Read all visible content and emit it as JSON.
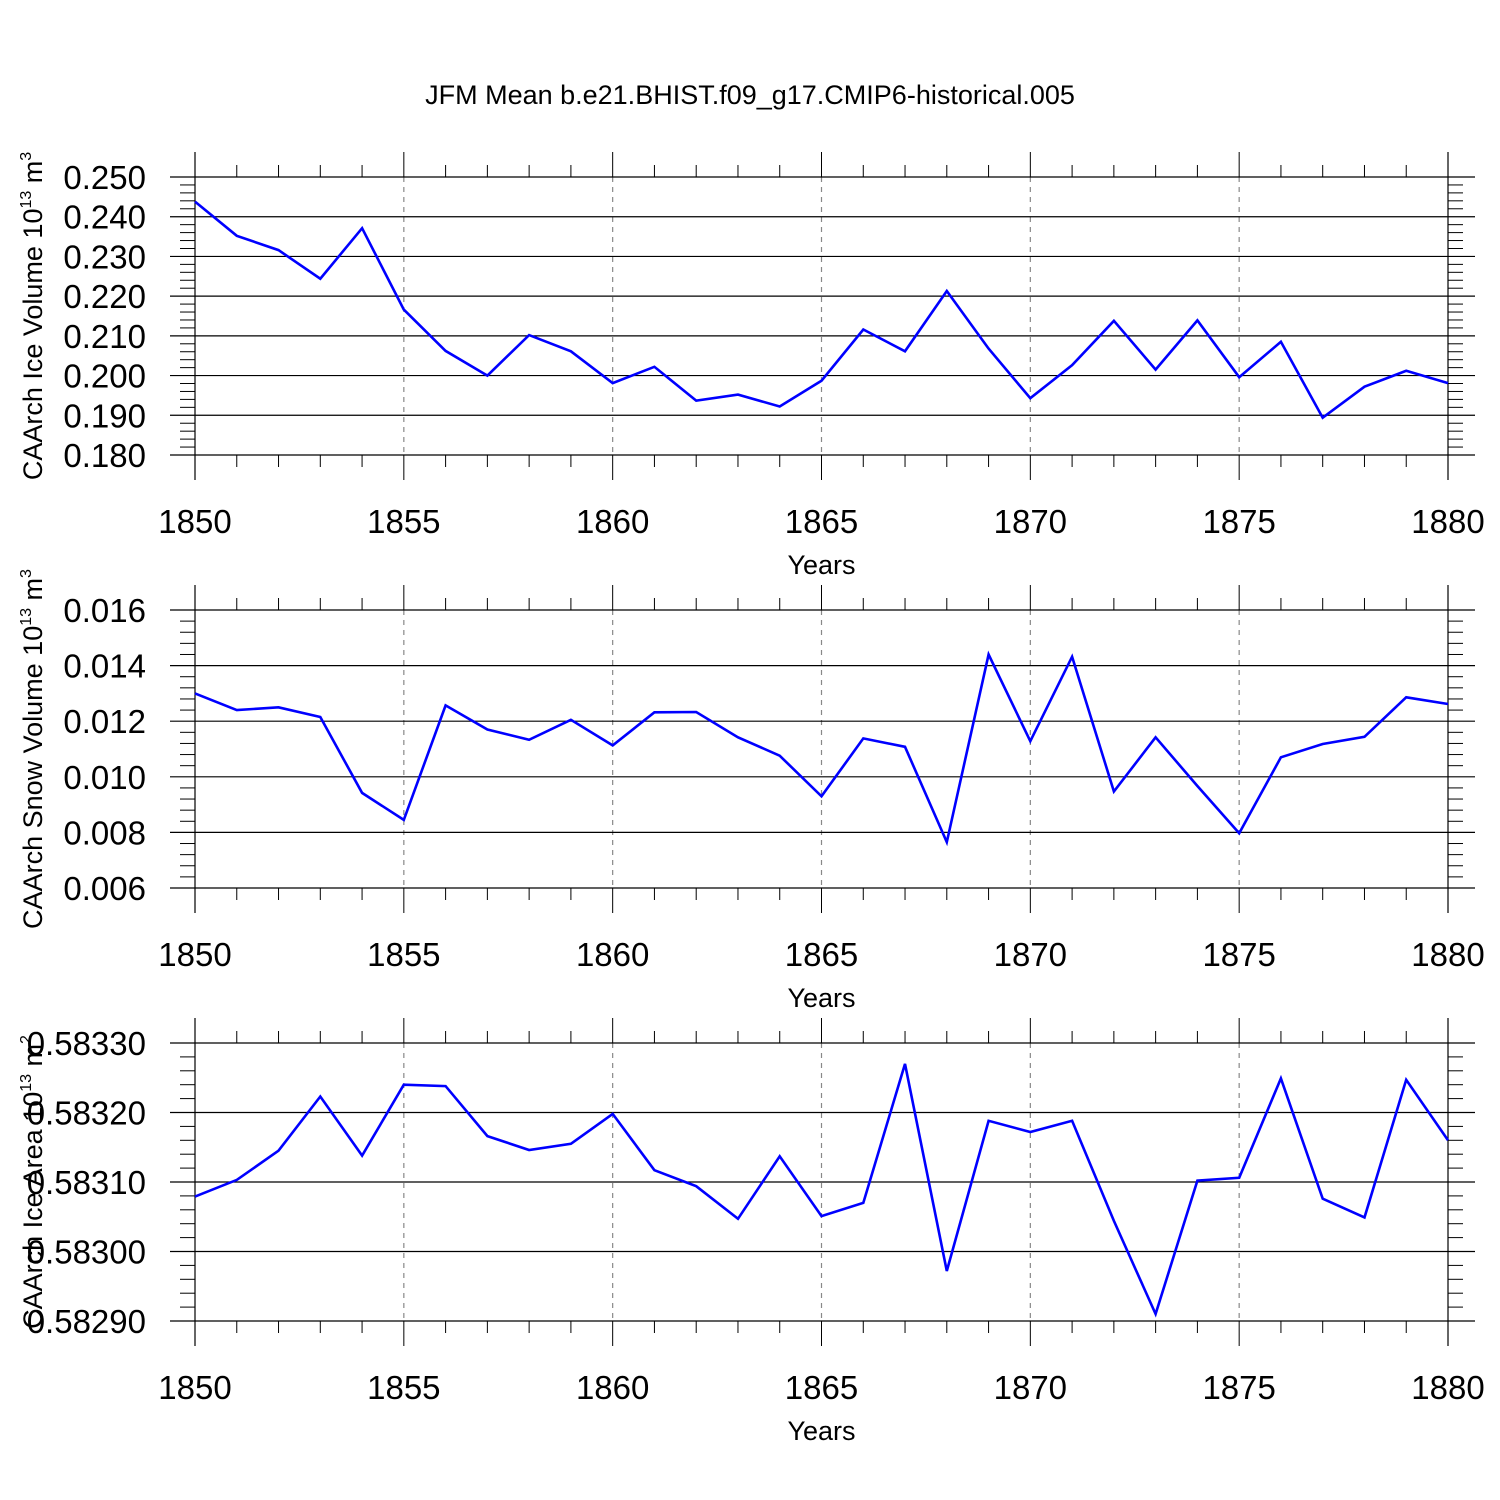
{
  "title": "JFM Mean b.e21.BHIST.f09_g17.CMIP6-historical.005",
  "colors": {
    "line": "#0000ff",
    "axis": "#000000",
    "grid": "#888888"
  },
  "chart_data": [
    {
      "type": "line",
      "ylabel": {
        "main": "CAArch Ice Volume 10",
        "exp": "13",
        "unit": " m",
        "unit_exp": "3"
      },
      "xlabel": "Years",
      "xlim": [
        1850,
        1880
      ],
      "ylim": [
        0.18,
        0.25
      ],
      "yticks": [
        0.18,
        0.19,
        0.2,
        0.21,
        0.22,
        0.23,
        0.24,
        0.25
      ],
      "ytick_labels": [
        "0.180",
        "0.190",
        "0.200",
        "0.210",
        "0.220",
        "0.230",
        "0.240",
        "0.250"
      ],
      "xticks": [
        1850,
        1855,
        1860,
        1865,
        1870,
        1875,
        1880
      ],
      "xtick_labels": [
        "1850",
        "1855",
        "1860",
        "1865",
        "1870",
        "1875",
        "1880"
      ],
      "grid": "vertical dashed at major x ticks",
      "x": [
        1850,
        1851,
        1852,
        1853,
        1854,
        1855,
        1856,
        1857,
        1858,
        1859,
        1860,
        1861,
        1862,
        1863,
        1864,
        1865,
        1866,
        1867,
        1868,
        1869,
        1870,
        1871,
        1872,
        1873,
        1874,
        1875,
        1876,
        1877,
        1878,
        1879,
        1880
      ],
      "values": [
        0.2438,
        0.2352,
        0.2316,
        0.2244,
        0.2371,
        0.2166,
        0.2062,
        0.2,
        0.2102,
        0.2061,
        0.1981,
        0.2022,
        0.1937,
        0.1952,
        0.1922,
        0.1987,
        0.2116,
        0.2061,
        0.2213,
        0.2068,
        0.1943,
        0.2026,
        0.2138,
        0.2015,
        0.2139,
        0.1996,
        0.2085,
        0.1894,
        0.1972,
        0.2012,
        0.1981
      ]
    },
    {
      "type": "line",
      "ylabel": {
        "main": "CAArch Snow Volume 10",
        "exp": "13",
        "unit": " m",
        "unit_exp": "3"
      },
      "xlabel": "Years",
      "xlim": [
        1850,
        1880
      ],
      "ylim": [
        0.006,
        0.016
      ],
      "yticks": [
        0.006,
        0.008,
        0.01,
        0.012,
        0.014,
        0.016
      ],
      "ytick_labels": [
        "0.006",
        "0.008",
        "0.010",
        "0.012",
        "0.014",
        "0.016"
      ],
      "xticks": [
        1850,
        1855,
        1860,
        1865,
        1870,
        1875,
        1880
      ],
      "xtick_labels": [
        "1850",
        "1855",
        "1860",
        "1865",
        "1870",
        "1875",
        "1880"
      ],
      "grid": "vertical dashed at major x ticks",
      "x": [
        1850,
        1851,
        1852,
        1853,
        1854,
        1855,
        1856,
        1857,
        1858,
        1859,
        1860,
        1861,
        1862,
        1863,
        1864,
        1865,
        1866,
        1867,
        1868,
        1869,
        1870,
        1871,
        1872,
        1873,
        1874,
        1875,
        1876,
        1877,
        1878,
        1879,
        1880
      ],
      "values": [
        0.013,
        0.0124,
        0.0125,
        0.01215,
        0.00942,
        0.00845,
        0.01257,
        0.0117,
        0.01133,
        0.01205,
        0.01113,
        0.01232,
        0.01233,
        0.01142,
        0.01076,
        0.0093,
        0.01138,
        0.01108,
        0.00765,
        0.0144,
        0.01128,
        0.01432,
        0.00947,
        0.01142,
        0.00967,
        0.00797,
        0.0107,
        0.01118,
        0.01144,
        0.01286,
        0.01262
      ]
    },
    {
      "type": "line",
      "ylabel": {
        "main": "CAArch Ice Area 10",
        "exp": "13",
        "unit": " m",
        "unit_exp": "2"
      },
      "xlabel": "Years",
      "xlim": [
        1850,
        1880
      ],
      "ylim": [
        0.5829,
        0.5833
      ],
      "yticks": [
        0.5829,
        0.583,
        0.5831,
        0.5832,
        0.5833
      ],
      "ytick_labels": [
        "0.58290",
        "0.58300",
        "0.58310",
        "0.58320",
        "0.58330"
      ],
      "xticks": [
        1850,
        1855,
        1860,
        1865,
        1870,
        1875,
        1880
      ],
      "xtick_labels": [
        "1850",
        "1855",
        "1860",
        "1865",
        "1870",
        "1875",
        "1880"
      ],
      "grid": "vertical dashed at major x ticks",
      "x": [
        1850,
        1851,
        1852,
        1853,
        1854,
        1855,
        1856,
        1857,
        1858,
        1859,
        1860,
        1861,
        1862,
        1863,
        1864,
        1865,
        1866,
        1867,
        1868,
        1869,
        1870,
        1871,
        1872,
        1873,
        1874,
        1875,
        1876,
        1877,
        1878,
        1879,
        1880
      ],
      "values": [
        0.583079,
        0.583103,
        0.583145,
        0.583223,
        0.583138,
        0.58324,
        0.583238,
        0.583166,
        0.583146,
        0.583155,
        0.583198,
        0.583117,
        0.583094,
        0.583047,
        0.583137,
        0.583051,
        0.58307,
        0.58327,
        0.582972,
        0.583188,
        0.583172,
        0.583188,
        0.583044,
        0.58291,
        0.583102,
        0.583106,
        0.583249,
        0.583076,
        0.583049,
        0.583247,
        0.58316
      ]
    }
  ]
}
